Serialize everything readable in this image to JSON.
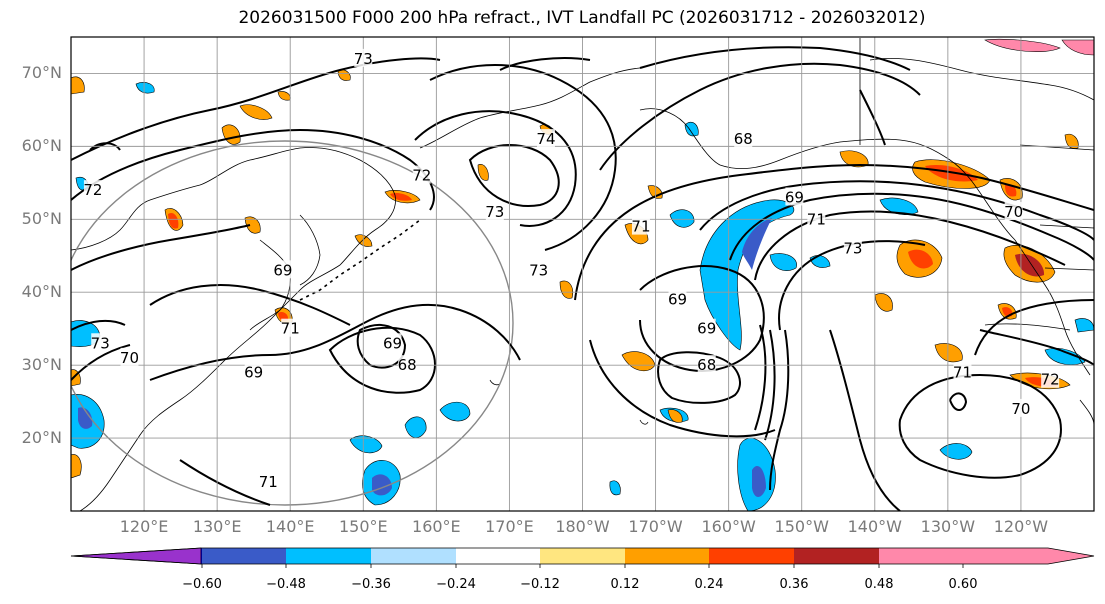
{
  "title": "2026031500 F000 200 hPa refract., IVT Landfall PC (2026031712 - 2026032012)",
  "map": {
    "projection": "equirectangular",
    "lon_range": [
      110,
      250
    ],
    "lat_range": [
      10,
      75
    ],
    "lat_ticks": [
      {
        "value": 70,
        "label": "70°N"
      },
      {
        "value": 60,
        "label": "60°N"
      },
      {
        "value": 50,
        "label": "50°N"
      },
      {
        "value": 40,
        "label": "40°N"
      },
      {
        "value": 30,
        "label": "30°N"
      },
      {
        "value": 20,
        "label": "20°N"
      }
    ],
    "lon_ticks": [
      {
        "value": 120,
        "label": "120°E"
      },
      {
        "value": 130,
        "label": "130°E"
      },
      {
        "value": 140,
        "label": "140°E"
      },
      {
        "value": 150,
        "label": "150°E"
      },
      {
        "value": 160,
        "label": "160°E"
      },
      {
        "value": 170,
        "label": "170°E"
      },
      {
        "value": 180,
        "label": "180°W"
      },
      {
        "value": 190,
        "label": "170°W"
      },
      {
        "value": 200,
        "label": "160°W"
      },
      {
        "value": 210,
        "label": "150°W"
      },
      {
        "value": 220,
        "label": "140°W"
      },
      {
        "value": 230,
        "label": "130°W"
      },
      {
        "value": 240,
        "label": "120°W"
      }
    ],
    "contour_labels": [
      {
        "text": "72",
        "lon": 113,
        "lat": 54
      },
      {
        "text": "73",
        "lon": 150,
        "lat": 72
      },
      {
        "text": "74",
        "lon": 175,
        "lat": 61
      },
      {
        "text": "72",
        "lon": 158,
        "lat": 56
      },
      {
        "text": "73",
        "lon": 168,
        "lat": 51
      },
      {
        "text": "73",
        "lon": 174,
        "lat": 43
      },
      {
        "text": "71",
        "lon": 188,
        "lat": 49
      },
      {
        "text": "69",
        "lon": 139,
        "lat": 43
      },
      {
        "text": "71",
        "lon": 140,
        "lat": 35
      },
      {
        "text": "69",
        "lon": 154,
        "lat": 33
      },
      {
        "text": "68",
        "lon": 156,
        "lat": 30
      },
      {
        "text": "69",
        "lon": 135,
        "lat": 29
      },
      {
        "text": "70",
        "lon": 118,
        "lat": 31
      },
      {
        "text": "73",
        "lon": 114,
        "lat": 33
      },
      {
        "text": "69",
        "lon": 193,
        "lat": 39
      },
      {
        "text": "69",
        "lon": 197,
        "lat": 35
      },
      {
        "text": "68",
        "lon": 197,
        "lat": 30
      },
      {
        "text": "68",
        "lon": 202,
        "lat": 61
      },
      {
        "text": "69",
        "lon": 209,
        "lat": 53
      },
      {
        "text": "71",
        "lon": 212,
        "lat": 50
      },
      {
        "text": "73",
        "lon": 217,
        "lat": 46
      },
      {
        "text": "70",
        "lon": 239,
        "lat": 51
      },
      {
        "text": "71",
        "lon": 232,
        "lat": 29
      },
      {
        "text": "70",
        "lon": 240,
        "lat": 24
      },
      {
        "text": "72",
        "lon": 244,
        "lat": 28
      },
      {
        "text": "71",
        "lon": 137,
        "lat": 14
      }
    ]
  },
  "colorbar": {
    "colors": [
      "#9932cc",
      "#00008b",
      "#3a5bc8",
      "#00bfff",
      "#b0e0ff",
      "#ffffff",
      "#ffe680",
      "#ff9f00",
      "#ff4000",
      "#b22222",
      "#ff88aa"
    ],
    "ticks": [
      "−0.60",
      "−0.48",
      "−0.36",
      "−0.24",
      "−0.12",
      "0.12",
      "0.24",
      "0.36",
      "0.48",
      "0.60"
    ]
  }
}
